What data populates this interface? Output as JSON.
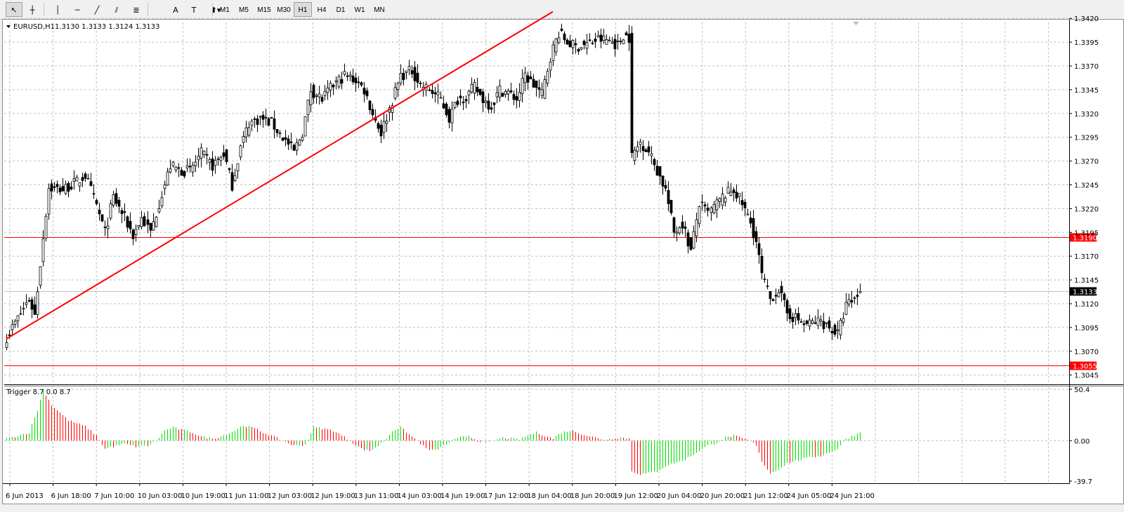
{
  "toolbar": {
    "tools": [
      {
        "name": "cursor-tool",
        "glyph": "↖",
        "selected": true
      },
      {
        "name": "crosshair-tool",
        "glyph": "┼"
      },
      {
        "name": "vertical-line-tool",
        "glyph": "│"
      },
      {
        "name": "horizontal-line-tool",
        "glyph": "─"
      },
      {
        "name": "trendline-tool",
        "glyph": "╱"
      },
      {
        "name": "equidistant-channel-tool",
        "glyph": "⫽"
      },
      {
        "name": "fibonacci-retracement-tool",
        "glyph": "≣"
      },
      {
        "name": "text-tool",
        "glyph": "A"
      },
      {
        "name": "text-label-tool",
        "glyph": "T"
      },
      {
        "name": "arrows-tool",
        "glyph": "⬆▾"
      }
    ],
    "timeframes": [
      "M1",
      "M5",
      "M15",
      "M30",
      "H1",
      "H4",
      "D1",
      "W1",
      "MN"
    ],
    "active_timeframe": "H1"
  },
  "main_chart": {
    "symbol_label": "EURUSD,H1",
    "ohlc_text": "1.3130 1.3133 1.3124 1.3133",
    "price_axis": [
      "1.3420",
      "1.3395",
      "1.3370",
      "1.3345",
      "1.3320",
      "1.3295",
      "1.3270",
      "1.3245",
      "1.3220",
      "1.3195",
      "1.3170",
      "1.3145",
      "1.3120",
      "1.3095",
      "1.3070",
      "1.3045"
    ],
    "current_price": "1.3133",
    "hlines": [
      {
        "label": "1.3190",
        "price": 1.319,
        "color": "#ff0000"
      },
      {
        "label": "1.3055",
        "price": 1.3055,
        "color": "#ff0000"
      }
    ],
    "trendline": {
      "from": {
        "bar": 0,
        "price": 1.3083
      },
      "to": {
        "bar": 194,
        "price": 1.3427
      },
      "color": "#ff0000"
    },
    "colors": {
      "bull": "#ffffff",
      "bear": "#000000",
      "wick": "#000000",
      "grid": "#c0c0c0",
      "current_line": "#c0c0c0"
    }
  },
  "indicator": {
    "label": "Trigger 8.7 0.0 8.7",
    "axis_labels": [
      "50.4",
      "0.00",
      "-39.7"
    ],
    "axis_values": [
      50.4,
      0,
      -39.7
    ],
    "colors": {
      "rising": "#00dd00",
      "falling": "#ff0000"
    }
  },
  "time_axis": [
    "6 Jun 2013",
    "6 Jun 18:00",
    "7 Jun 10:00",
    "10 Jun 03:00",
    "10 Jun 19:00",
    "11 Jun 11:00",
    "12 Jun 03:00",
    "12 Jun 19:00",
    "13 Jun 11:00",
    "14 Jun 03:00",
    "14 Jun 19:00",
    "17 Jun 12:00",
    "18 Jun 04:00",
    "18 Jun 20:00",
    "19 Jun 12:00",
    "20 Jun 04:00",
    "20 Jun 20:00",
    "21 Jun 12:00",
    "24 Jun 05:00",
    "24 Jun 21:00"
  ],
  "chart_data": {
    "type": "candlestick",
    "symbol": "EURUSD",
    "timeframe": "H1",
    "y_range": [
      1.304,
      1.3428
    ],
    "close_path_anchors": [
      [
        0,
        1.3085
      ],
      [
        8,
        1.3125
      ],
      [
        10,
        1.3108
      ],
      [
        13,
        1.319
      ],
      [
        15,
        1.3242
      ],
      [
        20,
        1.324
      ],
      [
        25,
        1.3248
      ],
      [
        28,
        1.3255
      ],
      [
        32,
        1.3223
      ],
      [
        35,
        1.3195
      ],
      [
        38,
        1.3232
      ],
      [
        42,
        1.321
      ],
      [
        45,
        1.3192
      ],
      [
        48,
        1.321
      ],
      [
        51,
        1.3195
      ],
      [
        55,
        1.3236
      ],
      [
        58,
        1.3265
      ],
      [
        62,
        1.326
      ],
      [
        65,
        1.326
      ],
      [
        69,
        1.3278
      ],
      [
        73,
        1.3265
      ],
      [
        77,
        1.3278
      ],
      [
        80,
        1.3245
      ],
      [
        83,
        1.3285
      ],
      [
        86,
        1.331
      ],
      [
        90,
        1.3315
      ],
      [
        94,
        1.331
      ],
      [
        98,
        1.3295
      ],
      [
        102,
        1.328
      ],
      [
        105,
        1.33
      ],
      [
        108,
        1.3345
      ],
      [
        112,
        1.3335
      ],
      [
        116,
        1.335
      ],
      [
        120,
        1.336
      ],
      [
        124,
        1.3355
      ],
      [
        127,
        1.3345
      ],
      [
        130,
        1.332
      ],
      [
        133,
        1.33
      ],
      [
        136,
        1.3325
      ],
      [
        140,
        1.336
      ],
      [
        144,
        1.3365
      ],
      [
        147,
        1.335
      ],
      [
        150,
        1.3345
      ],
      [
        154,
        1.3335
      ],
      [
        157,
        1.3315
      ],
      [
        160,
        1.3335
      ],
      [
        163,
        1.3338
      ],
      [
        166,
        1.3348
      ],
      [
        169,
        1.3335
      ],
      [
        172,
        1.3328
      ],
      [
        175,
        1.3345
      ],
      [
        178,
        1.3342
      ],
      [
        181,
        1.3335
      ],
      [
        184,
        1.336
      ],
      [
        187,
        1.335
      ],
      [
        190,
        1.334
      ],
      [
        193,
        1.338
      ],
      [
        196,
        1.3405
      ],
      [
        199,
        1.3395
      ],
      [
        202,
        1.339
      ],
      [
        206,
        1.3393
      ],
      [
        210,
        1.3398
      ],
      [
        214,
        1.3397
      ],
      [
        217,
        1.3392
      ],
      [
        219,
        1.3403
      ],
      [
        221,
        1.34
      ],
      [
        222,
        1.3275
      ],
      [
        225,
        1.329
      ],
      [
        228,
        1.328
      ],
      [
        231,
        1.326
      ],
      [
        234,
        1.324
      ],
      [
        237,
        1.3195
      ],
      [
        240,
        1.3205
      ],
      [
        243,
        1.3175
      ],
      [
        246,
        1.3225
      ],
      [
        249,
        1.3215
      ],
      [
        252,
        1.3225
      ],
      [
        255,
        1.3235
      ],
      [
        258,
        1.324
      ],
      [
        261,
        1.3225
      ],
      [
        264,
        1.3205
      ],
      [
        266,
        1.3185
      ],
      [
        268,
        1.315
      ],
      [
        271,
        1.3125
      ],
      [
        274,
        1.3135
      ],
      [
        277,
        1.311
      ],
      [
        280,
        1.3105
      ],
      [
        283,
        1.3098
      ],
      [
        286,
        1.31
      ],
      [
        289,
        1.3102
      ],
      [
        292,
        1.3095
      ],
      [
        295,
        1.3088
      ],
      [
        298,
        1.3118
      ],
      [
        301,
        1.3125
      ],
      [
        303,
        1.3133
      ]
    ],
    "indicator_path_anchors": [
      [
        0,
        2
      ],
      [
        8,
        8
      ],
      [
        11,
        30
      ],
      [
        13,
        50
      ],
      [
        16,
        35
      ],
      [
        22,
        20
      ],
      [
        28,
        14
      ],
      [
        32,
        5
      ],
      [
        35,
        -8
      ],
      [
        39,
        -5
      ],
      [
        42,
        -3
      ],
      [
        46,
        -6
      ],
      [
        50,
        -5
      ],
      [
        53,
        0
      ],
      [
        56,
        10
      ],
      [
        59,
        13
      ],
      [
        63,
        10
      ],
      [
        66,
        8
      ],
      [
        69,
        4
      ],
      [
        73,
        2
      ],
      [
        77,
        5
      ],
      [
        81,
        10
      ],
      [
        84,
        15
      ],
      [
        88,
        12
      ],
      [
        91,
        8
      ],
      [
        94,
        5
      ],
      [
        98,
        0
      ],
      [
        102,
        -5
      ],
      [
        106,
        -4
      ],
      [
        109,
        13
      ],
      [
        112,
        12
      ],
      [
        116,
        10
      ],
      [
        119,
        5
      ],
      [
        122,
        0
      ],
      [
        126,
        -8
      ],
      [
        129,
        -10
      ],
      [
        132,
        -5
      ],
      [
        135,
        2
      ],
      [
        137,
        10
      ],
      [
        140,
        13
      ],
      [
        143,
        6
      ],
      [
        146,
        0
      ],
      [
        149,
        -8
      ],
      [
        152,
        -10
      ],
      [
        155,
        -5
      ],
      [
        158,
        0
      ],
      [
        161,
        3
      ],
      [
        164,
        5
      ],
      [
        167,
        0
      ],
      [
        170,
        -2
      ],
      [
        173,
        0
      ],
      [
        176,
        3
      ],
      [
        179,
        2
      ],
      [
        182,
        1
      ],
      [
        185,
        5
      ],
      [
        188,
        8
      ],
      [
        191,
        5
      ],
      [
        194,
        2
      ],
      [
        197,
        8
      ],
      [
        200,
        10
      ],
      [
        203,
        8
      ],
      [
        206,
        5
      ],
      [
        209,
        3
      ],
      [
        212,
        1
      ],
      [
        215,
        2
      ],
      [
        218,
        3
      ],
      [
        221,
        2
      ],
      [
        222,
        -30
      ],
      [
        225,
        -33
      ],
      [
        228,
        -32
      ],
      [
        231,
        -30
      ],
      [
        234,
        -25
      ],
      [
        237,
        -22
      ],
      [
        240,
        -20
      ],
      [
        243,
        -15
      ],
      [
        246,
        -10
      ],
      [
        249,
        -5
      ],
      [
        252,
        -2
      ],
      [
        255,
        3
      ],
      [
        258,
        5
      ],
      [
        261,
        2
      ],
      [
        264,
        0
      ],
      [
        266,
        -5
      ],
      [
        268,
        -20
      ],
      [
        271,
        -32
      ],
      [
        274,
        -28
      ],
      [
        277,
        -22
      ],
      [
        280,
        -20
      ],
      [
        283,
        -18
      ],
      [
        286,
        -16
      ],
      [
        289,
        -15
      ],
      [
        292,
        -12
      ],
      [
        295,
        -8
      ],
      [
        298,
        2
      ],
      [
        301,
        5
      ],
      [
        303,
        8.7
      ]
    ]
  }
}
